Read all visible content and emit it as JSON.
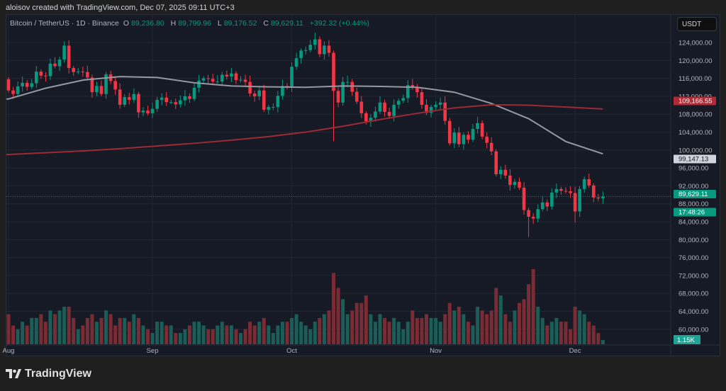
{
  "credit": "aloisov created with TradingView.com, Dec 07, 2025 09:11 UTC+3",
  "legend": {
    "symbol": "Bitcoin / TetherUS · 1D · Binance",
    "o_label": "O",
    "o": "89,236.80",
    "h_label": "H",
    "h": "89,799.96",
    "l_label": "L",
    "l": "89,176.52",
    "c_label": "C",
    "c": "89,629.11",
    "change": "+392.32 (+0.44%)"
  },
  "currency_button": "USDT",
  "logo_text": "TradingView",
  "colors": {
    "up": "#089981",
    "down": "#f23645",
    "ma50": "#9598a1",
    "ma200": "#9c2a35",
    "vol_up": "#1b5e57",
    "vol_down": "#7a2c34"
  },
  "price_tags": {
    "ma200": "109,166.55",
    "ma50": "99,147.13",
    "last": "89,629.11",
    "countdown": "17:48:26",
    "volume": "1.15K"
  },
  "chart_data": {
    "type": "candlestick",
    "title": "Bitcoin / TetherUS · 1D · Binance",
    "first_date": "2025-08-01",
    "ylim": [
      56000,
      128000
    ],
    "y_ticks": [
      "124,000.00",
      "120,000.00",
      "116,000.00",
      "112,000.00",
      "108,000.00",
      "104,000.00",
      "100,000.00",
      "96,000.00",
      "92,000.00",
      "88,000.00",
      "84,000.00",
      "80,000.00",
      "76,000.00",
      "72,000.00",
      "68,000.00",
      "64,000.00",
      "60,000.00"
    ],
    "y_tick_values": [
      124000,
      120000,
      116000,
      112000,
      108000,
      104000,
      100000,
      96000,
      92000,
      88000,
      84000,
      80000,
      76000,
      72000,
      68000,
      64000,
      60000
    ],
    "x_ticks": [
      {
        "label": "Aug",
        "day": 0
      },
      {
        "label": "Sep",
        "day": 31
      },
      {
        "label": "Oct",
        "day": 61
      },
      {
        "label": "Nov",
        "day": 92
      },
      {
        "label": "Dec",
        "day": 122
      }
    ],
    "open_first": 115.8,
    "closes_k": [
      113.3,
      112.5,
      114.2,
      115.0,
      114.1,
      114.9,
      117.5,
      116.6,
      116.5,
      119.3,
      118.7,
      120.2,
      123.3,
      118.3,
      117.4,
      117.5,
      117.4,
      116.2,
      112.9,
      114.3,
      112.5,
      116.9,
      115.4,
      113.5,
      110.1,
      111.8,
      111.2,
      112.5,
      108.4,
      108.8,
      108.2,
      109.2,
      111.2,
      111.7,
      110.7,
      110.7,
      110.2,
      111.1,
      112.0,
      111.4,
      113.9,
      115.5,
      116.0,
      115.9,
      115.3,
      115.3,
      116.8,
      116.4,
      117.1,
      115.6,
      115.7,
      115.2,
      112.6,
      112.0,
      113.3,
      109.0,
      109.6,
      109.6,
      112.1,
      114.3,
      114.0,
      118.6,
      120.5,
      122.2,
      122.3,
      123.5,
      124.7,
      121.4,
      123.3,
      121.7,
      113.2,
      110.6,
      115.2,
      115.2,
      113.0,
      110.8,
      108.2,
      106.4,
      107.2,
      108.6,
      110.6,
      108.5,
      107.6,
      110.1,
      111.0,
      111.6,
      114.5,
      114.1,
      112.9,
      110.1,
      108.3,
      109.6,
      110.1,
      110.6,
      106.5,
      101.5,
      103.9,
      101.3,
      103.4,
      102.3,
      104.7,
      106.0,
      103.0,
      101.6,
      99.7,
      94.6,
      95.6,
      94.3,
      92.2,
      92.9,
      91.6,
      86.6,
      85.1,
      84.7,
      86.8,
      88.3,
      87.4,
      90.5,
      91.3,
      90.9,
      90.8,
      90.4,
      86.3,
      91.3,
      93.5,
      92.1,
      89.4,
      89.2,
      89.63
    ],
    "wick_extremes_k": [
      {
        "day": 13,
        "high": 124.5
      },
      {
        "day": 66,
        "high": 126.2
      },
      {
        "day": 70,
        "low": 102.0
      },
      {
        "day": 112,
        "low": 80.6
      },
      {
        "day": 122,
        "low": 83.8
      },
      {
        "day": 124,
        "high": 94.1
      }
    ],
    "volume_k": [
      8,
      5,
      4,
      6,
      5,
      7,
      7,
      8,
      6,
      9,
      8,
      9,
      10,
      10,
      7,
      4,
      5,
      7,
      8,
      6,
      7,
      9,
      8,
      5,
      7,
      7,
      6,
      8,
      7,
      5,
      4,
      3,
      6,
      6,
      5,
      5,
      3,
      3,
      4,
      5,
      6,
      6,
      5,
      4,
      4,
      5,
      6,
      5,
      5,
      4,
      3,
      4,
      6,
      5,
      6,
      7,
      5,
      3,
      5,
      6,
      6,
      7,
      8,
      6,
      5,
      4,
      6,
      7,
      8,
      9,
      19,
      15,
      12,
      8,
      9,
      11,
      11,
      13,
      8,
      6,
      8,
      7,
      6,
      7,
      6,
      4,
      6,
      9,
      7,
      7,
      8,
      7,
      7,
      6,
      8,
      11,
      9,
      10,
      8,
      6,
      5,
      10,
      9,
      8,
      9,
      15,
      13,
      8,
      6,
      9,
      11,
      12,
      16,
      20,
      10,
      7,
      5,
      6,
      7,
      6,
      6,
      4,
      10,
      9,
      8,
      6,
      5,
      3,
      1.15
    ],
    "series": [
      {
        "name": "MA 50",
        "days": [
          0,
          8,
          16,
          24,
          32,
          40,
          48,
          56,
          64,
          72,
          80,
          88,
          96,
          104,
          112,
          120,
          128
        ],
        "values": [
          111400,
          113800,
          115600,
          116400,
          116200,
          115000,
          114300,
          114100,
          114000,
          114300,
          114200,
          114000,
          112900,
          110400,
          107000,
          101900,
          99147
        ]
      },
      {
        "name": "MA 200",
        "days": [
          0,
          8,
          16,
          24,
          32,
          40,
          48,
          56,
          64,
          72,
          80,
          88,
          96,
          104,
          112,
          120,
          128
        ],
        "values": [
          99000,
          99400,
          99800,
          100300,
          100900,
          101500,
          102200,
          103000,
          104000,
          105300,
          106800,
          108200,
          109400,
          110100,
          110000,
          109600,
          109167
        ]
      }
    ]
  }
}
